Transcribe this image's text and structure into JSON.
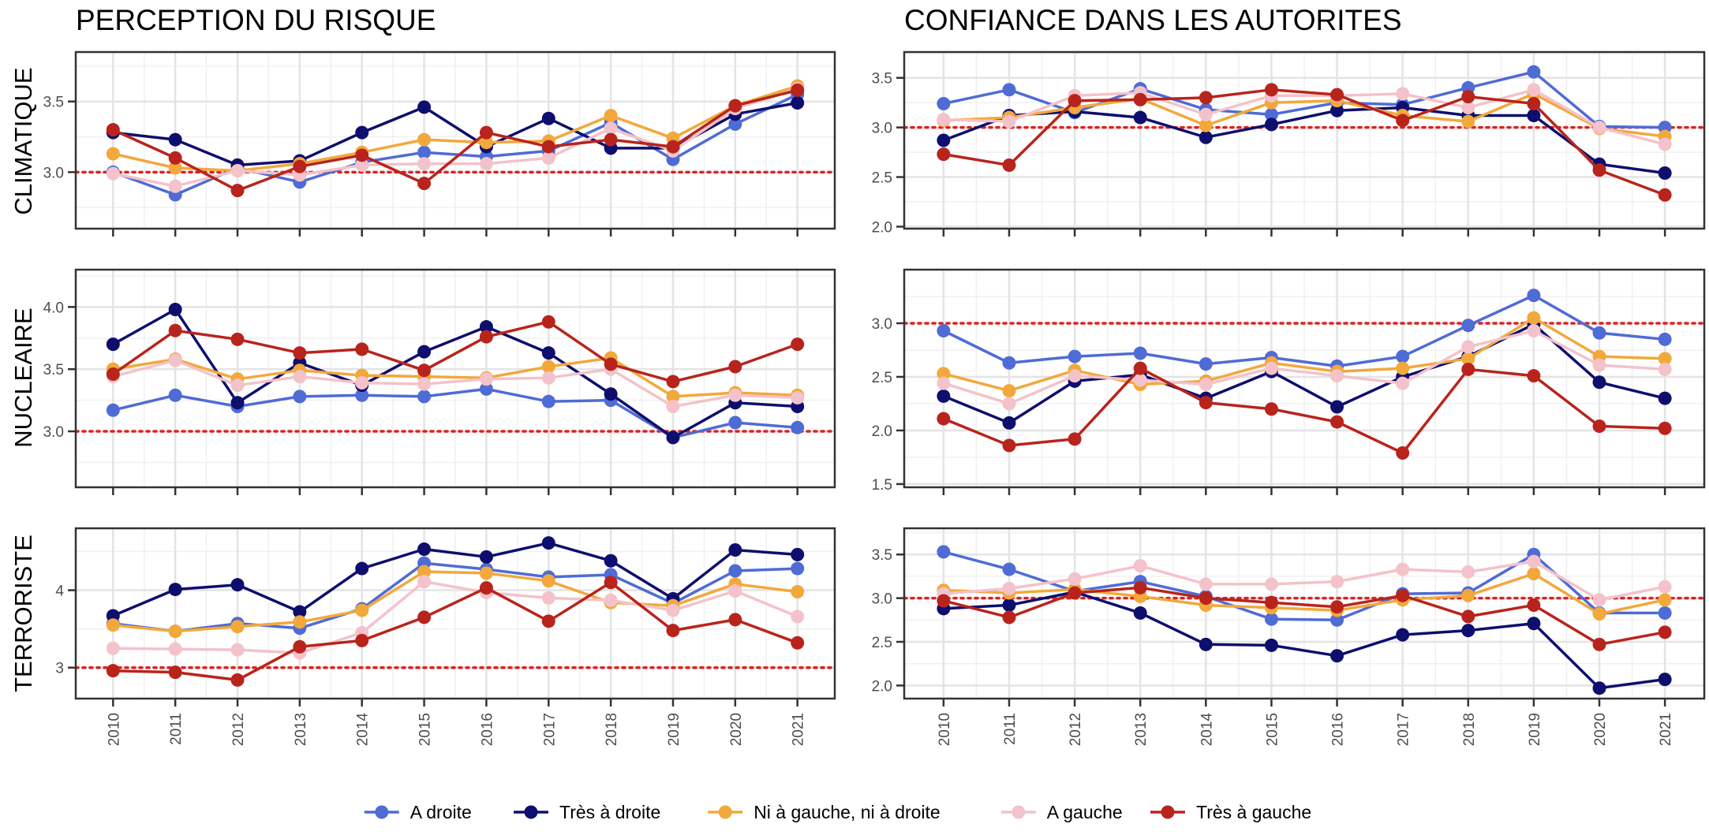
{
  "column_titles": [
    "PERCEPTION DU RISQUE",
    "CONFIANCE DANS LES AUTORITES"
  ],
  "row_labels": [
    "CLIMATIQUE",
    "NUCLEAIRE",
    "TERRORISTE"
  ],
  "years": [
    "2010",
    "2011",
    "2012",
    "2013",
    "2014",
    "2015",
    "2016",
    "2017",
    "2018",
    "2019",
    "2020",
    "2021"
  ],
  "legend": [
    {
      "label": "A droite",
      "color": "#4f6bd6"
    },
    {
      "label": "Très à droite",
      "color": "#0e0e6e"
    },
    {
      "label": "Ni à gauche, ni à droite",
      "color": "#f2a83b"
    },
    {
      "label": "A gauche",
      "color": "#f4c2ca"
    },
    {
      "label": "Très à gauche",
      "color": "#b8241c"
    }
  ],
  "reference_line": {
    "value": 3.0,
    "color": "#e02020",
    "style": "dotted"
  },
  "chart_data": [
    {
      "type": "line",
      "column": "PERCEPTION DU RISQUE",
      "row": "CLIMATIQUE",
      "x": [
        "2010",
        "2011",
        "2012",
        "2013",
        "2014",
        "2015",
        "2016",
        "2017",
        "2018",
        "2019",
        "2020",
        "2021"
      ],
      "ylim": [
        2.6,
        3.85
      ],
      "yticks": [
        3.0,
        3.5
      ],
      "yticklabels": [
        "3.0",
        "3.5"
      ],
      "grid": true,
      "series": [
        {
          "name": "A droite",
          "values": [
            3.0,
            2.84,
            3.03,
            2.93,
            3.07,
            3.14,
            3.11,
            3.15,
            3.35,
            3.09,
            3.34,
            3.55
          ]
        },
        {
          "name": "Très à droite",
          "values": [
            3.28,
            3.23,
            3.05,
            3.08,
            3.28,
            3.46,
            3.18,
            3.38,
            3.17,
            3.17,
            3.41,
            3.49
          ]
        },
        {
          "name": "Ni à gauche, ni à droite",
          "values": [
            3.13,
            3.03,
            3.01,
            3.06,
            3.14,
            3.23,
            3.21,
            3.22,
            3.4,
            3.24,
            3.47,
            3.61
          ]
        },
        {
          "name": "A gauche",
          "values": [
            2.99,
            2.9,
            3.01,
            2.98,
            3.05,
            3.06,
            3.06,
            3.1,
            3.31,
            3.15,
            3.45,
            3.59
          ]
        },
        {
          "name": "Très à gauche",
          "values": [
            3.3,
            3.1,
            2.87,
            3.04,
            3.12,
            2.92,
            3.28,
            3.18,
            3.23,
            3.18,
            3.47,
            3.58
          ]
        }
      ]
    },
    {
      "type": "line",
      "column": "CONFIANCE DANS LES AUTORITES",
      "row": "CLIMATIQUE",
      "x": [
        "2010",
        "2011",
        "2012",
        "2013",
        "2014",
        "2015",
        "2016",
        "2017",
        "2018",
        "2019",
        "2020",
        "2021"
      ],
      "ylim": [
        1.98,
        3.76
      ],
      "yticks": [
        2.0,
        2.5,
        3.0,
        3.5
      ],
      "yticklabels": [
        "2.0",
        "2.5",
        "3.0",
        "3.5"
      ],
      "grid": true,
      "series": [
        {
          "name": "A droite",
          "values": [
            3.24,
            3.38,
            3.15,
            3.39,
            3.18,
            3.13,
            3.25,
            3.23,
            3.4,
            3.56,
            3.01,
            3.0
          ]
        },
        {
          "name": "Très à droite",
          "values": [
            2.87,
            3.12,
            3.16,
            3.1,
            2.9,
            3.03,
            3.17,
            3.2,
            3.12,
            3.12,
            2.63,
            2.54
          ]
        },
        {
          "name": "Ni à gauche, ni à droite",
          "values": [
            3.07,
            3.1,
            3.2,
            3.29,
            3.02,
            3.25,
            3.27,
            3.12,
            3.06,
            3.34,
            2.99,
            2.91
          ]
        },
        {
          "name": "A gauche",
          "values": [
            3.08,
            3.06,
            3.32,
            3.35,
            3.13,
            3.32,
            3.32,
            3.34,
            3.2,
            3.38,
            3.0,
            2.83
          ]
        },
        {
          "name": "Très à gauche",
          "values": [
            2.73,
            2.62,
            3.27,
            3.28,
            3.3,
            3.38,
            3.33,
            3.07,
            3.31,
            3.24,
            2.57,
            2.32
          ]
        }
      ]
    },
    {
      "type": "line",
      "column": "PERCEPTION DU RISQUE",
      "row": "NUCLEAIRE",
      "x": [
        "2010",
        "2011",
        "2012",
        "2013",
        "2014",
        "2015",
        "2016",
        "2017",
        "2018",
        "2019",
        "2020",
        "2021"
      ],
      "ylim": [
        2.55,
        4.3
      ],
      "yticks": [
        3.0,
        3.5,
        4.0
      ],
      "yticklabels": [
        "3.0",
        "3.5",
        "4.0"
      ],
      "grid": true,
      "series": [
        {
          "name": "A droite",
          "values": [
            3.17,
            3.29,
            3.2,
            3.28,
            3.29,
            3.28,
            3.34,
            3.24,
            3.25,
            2.95,
            3.07,
            3.03
          ]
        },
        {
          "name": "Très à droite",
          "values": [
            3.7,
            3.98,
            3.23,
            3.55,
            3.37,
            3.64,
            3.84,
            3.63,
            3.3,
            2.95,
            3.23,
            3.2
          ]
        },
        {
          "name": "Ni à gauche, ni à droite",
          "values": [
            3.5,
            3.58,
            3.42,
            3.49,
            3.45,
            3.44,
            3.43,
            3.52,
            3.59,
            3.28,
            3.31,
            3.29
          ]
        },
        {
          "name": "A gauche",
          "values": [
            3.44,
            3.57,
            3.37,
            3.44,
            3.39,
            3.38,
            3.42,
            3.43,
            3.5,
            3.2,
            3.29,
            3.27
          ]
        },
        {
          "name": "Très à gauche",
          "values": [
            3.46,
            3.81,
            3.74,
            3.63,
            3.66,
            3.49,
            3.76,
            3.88,
            3.54,
            3.4,
            3.52,
            3.7
          ]
        }
      ]
    },
    {
      "type": "line",
      "column": "CONFIANCE DANS LES AUTORITES",
      "row": "NUCLEAIRE",
      "x": [
        "2010",
        "2011",
        "2012",
        "2013",
        "2014",
        "2015",
        "2016",
        "2017",
        "2018",
        "2019",
        "2020",
        "2021"
      ],
      "ylim": [
        1.47,
        3.5
      ],
      "yticks": [
        1.5,
        2.0,
        2.5,
        3.0
      ],
      "yticklabels": [
        "1.5",
        "2.0",
        "2.5",
        "3.0"
      ],
      "grid": true,
      "series": [
        {
          "name": "A droite",
          "values": [
            2.93,
            2.63,
            2.69,
            2.72,
            2.62,
            2.68,
            2.6,
            2.69,
            2.98,
            3.26,
            2.91,
            2.85
          ]
        },
        {
          "name": "Très à droite",
          "values": [
            2.32,
            2.07,
            2.46,
            2.52,
            2.3,
            2.55,
            2.22,
            2.5,
            2.69,
            2.99,
            2.45,
            2.3
          ]
        },
        {
          "name": "Ni à gauche, ni à droite",
          "values": [
            2.53,
            2.37,
            2.56,
            2.43,
            2.46,
            2.63,
            2.55,
            2.58,
            2.67,
            3.05,
            2.69,
            2.67
          ]
        },
        {
          "name": "A gauche",
          "values": [
            2.44,
            2.25,
            2.51,
            2.47,
            2.43,
            2.58,
            2.51,
            2.44,
            2.78,
            2.93,
            2.61,
            2.57
          ]
        },
        {
          "name": "Très à gauche",
          "values": [
            2.11,
            1.86,
            1.92,
            2.58,
            2.26,
            2.2,
            2.08,
            1.79,
            2.57,
            2.51,
            2.04,
            2.02
          ]
        }
      ]
    },
    {
      "type": "line",
      "column": "PERCEPTION DU RISQUE",
      "row": "TERRORISTE",
      "x": [
        "2010",
        "2011",
        "2012",
        "2013",
        "2014",
        "2015",
        "2016",
        "2017",
        "2018",
        "2019",
        "2020",
        "2021"
      ],
      "ylim": [
        2.6,
        4.8
      ],
      "yticks": [
        3,
        4
      ],
      "yticklabels": [
        "3",
        "4"
      ],
      "grid": true,
      "series": [
        {
          "name": "A droite",
          "values": [
            3.57,
            3.47,
            3.57,
            3.51,
            3.76,
            4.35,
            4.27,
            4.17,
            4.2,
            3.83,
            4.25,
            4.28
          ]
        },
        {
          "name": "Très à droite",
          "values": [
            3.67,
            4.01,
            4.07,
            3.72,
            4.28,
            4.53,
            4.43,
            4.61,
            4.38,
            3.89,
            4.52,
            4.46
          ]
        },
        {
          "name": "Ni à gauche, ni à droite",
          "values": [
            3.55,
            3.47,
            3.53,
            3.59,
            3.74,
            4.24,
            4.22,
            4.12,
            3.84,
            3.8,
            4.08,
            3.98
          ]
        },
        {
          "name": "A gauche",
          "values": [
            3.25,
            3.24,
            3.23,
            3.19,
            3.45,
            4.11,
            3.97,
            3.9,
            3.87,
            3.74,
            3.99,
            3.66
          ]
        },
        {
          "name": "Très à gauche",
          "values": [
            2.96,
            2.94,
            2.84,
            3.27,
            3.35,
            3.65,
            4.03,
            3.6,
            4.1,
            3.48,
            3.62,
            3.32
          ]
        }
      ]
    },
    {
      "type": "line",
      "column": "CONFIANCE DANS LES AUTORITES",
      "row": "TERRORISTE",
      "x": [
        "2010",
        "2011",
        "2012",
        "2013",
        "2014",
        "2015",
        "2016",
        "2017",
        "2018",
        "2019",
        "2020",
        "2021"
      ],
      "ylim": [
        1.85,
        3.8
      ],
      "yticks": [
        2.0,
        2.5,
        3.0,
        3.5
      ],
      "yticklabels": [
        "2.0",
        "2.5",
        "3.0",
        "3.5"
      ],
      "grid": true,
      "series": [
        {
          "name": "A droite",
          "values": [
            3.53,
            3.33,
            3.08,
            3.19,
            3.02,
            2.76,
            2.75,
            3.05,
            3.06,
            3.5,
            2.83,
            2.83
          ]
        },
        {
          "name": "Très à droite",
          "values": [
            2.88,
            2.92,
            3.07,
            2.83,
            2.47,
            2.46,
            2.34,
            2.58,
            2.63,
            2.71,
            1.97,
            2.07
          ]
        },
        {
          "name": "Ni à gauche, ni à droite",
          "values": [
            3.09,
            3.06,
            3.1,
            3.02,
            2.92,
            2.89,
            2.86,
            2.98,
            3.03,
            3.28,
            2.82,
            2.98
          ]
        },
        {
          "name": "A gauche",
          "values": [
            3.05,
            3.11,
            3.22,
            3.37,
            3.16,
            3.16,
            3.19,
            3.33,
            3.3,
            3.42,
            2.98,
            3.13
          ]
        },
        {
          "name": "Très à gauche",
          "values": [
            2.97,
            2.78,
            3.06,
            3.12,
            3.0,
            2.95,
            2.9,
            3.03,
            2.79,
            2.92,
            2.47,
            2.61
          ]
        }
      ]
    }
  ]
}
